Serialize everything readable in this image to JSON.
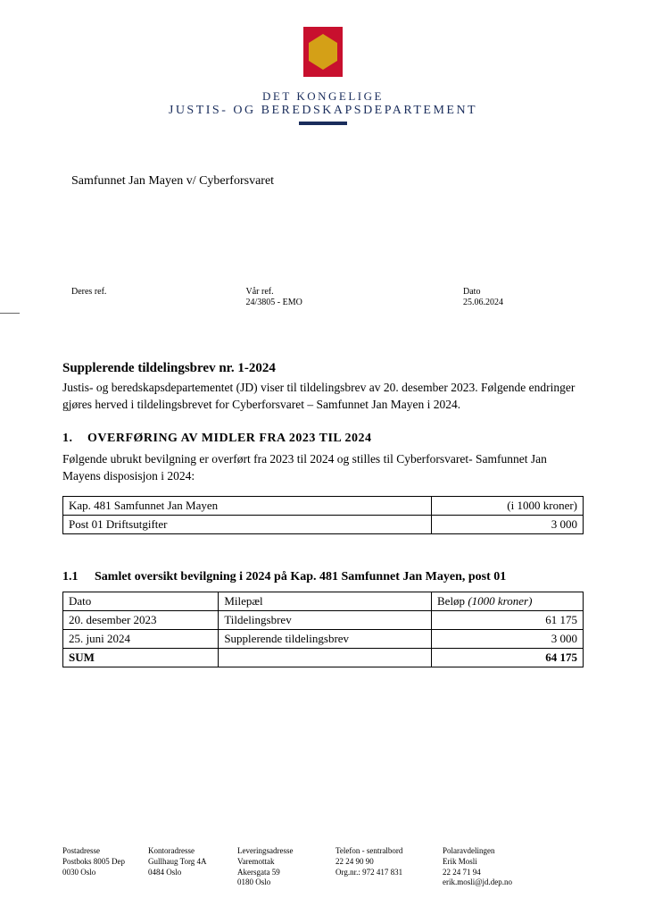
{
  "header": {
    "line1": "DET KONGELIGE",
    "line2": "JUSTIS- OG BEREDSKAPSDEPARTEMENT"
  },
  "recipient": "Samfunnet Jan Mayen v/ Cyberforsvaret",
  "refs": {
    "deres_label": "Deres ref.",
    "var_label": "Vår ref.",
    "var_value": "24/3805 - EMO",
    "dato_label": "Dato",
    "dato_value": "25.06.2024"
  },
  "title": "Supplerende tildelingsbrev nr. 1-2024",
  "intro": "Justis- og beredskapsdepartementet (JD) viser til tildelingsbrev av 20. desember 2023. Følgende endringer gjøres herved i tildelingsbrevet for Cyberforsvaret – Samfunnet Jan Mayen i 2024.",
  "section1": {
    "num": "1.",
    "heading": "OVERFØRING AV MIDLER FRA 2023 TIL 2024",
    "para": "Følgende ubrukt bevilgning er overført fra 2023 til 2024 og stilles til Cyberforsvaret- Samfunnet Jan Mayens disposisjon i 2024:"
  },
  "table1": {
    "r1c1": "Kap. 481 Samfunnet Jan Mayen",
    "r1c2": "(i 1000 kroner)",
    "r2c1": "Post 01 Driftsutgifter",
    "r2c2": "3 000"
  },
  "sub11": {
    "num": "1.1",
    "heading": "Samlet oversikt bevilgning i 2024 på Kap. 481 Samfunnet Jan Mayen, post 01"
  },
  "table2": {
    "h1": "Dato",
    "h2": "Milepæl",
    "h3a": "Beløp ",
    "h3b": "(1000 kroner)",
    "rows": [
      {
        "c1": "20. desember 2023",
        "c2": "Tildelingsbrev",
        "c3": "61 175"
      },
      {
        "c1": "25. juni 2024",
        "c2": "Supplerende tildelingsbrev",
        "c3": "3 000"
      }
    ],
    "sum_label": "SUM",
    "sum_value": "64 175"
  },
  "footer": {
    "col1": {
      "l1": "Postadresse",
      "l2": "Postboks 8005 Dep",
      "l3": "0030 Oslo"
    },
    "col2": {
      "l1": "Kontoradresse",
      "l2": "Gullhaug Torg 4A",
      "l3": "0484 Oslo"
    },
    "col3": {
      "l1": "Leveringsadresse",
      "l2": "Varemottak",
      "l3": "Akersgata 59",
      "l4": "0180 Oslo"
    },
    "col4": {
      "l1": "Telefon - sentralbord",
      "l2": "22 24 90 90",
      "l3": "Org.nr.: 972 417 831"
    },
    "col5": {
      "l1": "Polaravdelingen",
      "l2": "Erik Mosli",
      "l3": "22 24 71 94",
      "l4": "erik.mosli@jd.dep.no"
    }
  }
}
